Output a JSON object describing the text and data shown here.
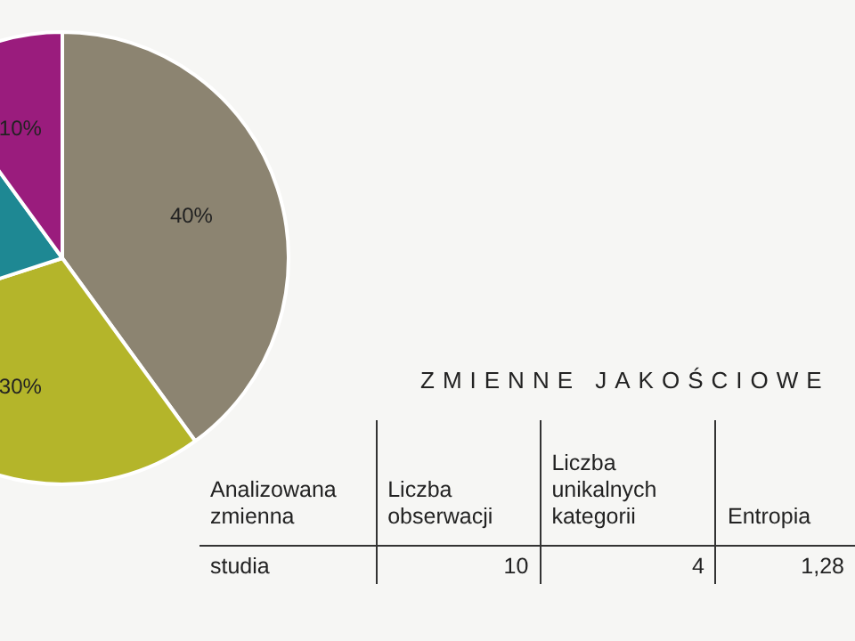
{
  "chart_data": {
    "type": "pie",
    "categories": [
      null,
      null,
      null,
      null
    ],
    "values": [
      40,
      30,
      20,
      10
    ],
    "colors": [
      "#8c8471",
      "#b4b52a",
      "#1e8893",
      "#9a1c7d"
    ],
    "value_labels": [
      "40%",
      "30%",
      null,
      "10%"
    ],
    "legend": false,
    "annotations": [
      "ZMIENNE JAKOŚCIOWE",
      "Analizowana zmienna",
      "Liczba obserwacji",
      "Liczba unikalnych kategorii",
      "Entropia",
      "studia",
      "10",
      "4",
      "1,28"
    ]
  }
}
